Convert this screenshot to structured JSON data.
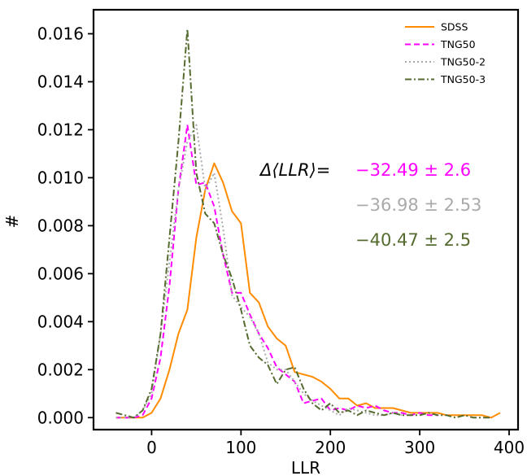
{
  "chart_data": {
    "type": "line",
    "xlabel": "LLR",
    "ylabel": "#",
    "xlim": [
      -65,
      410
    ],
    "ylim": [
      -0.0005,
      0.017
    ],
    "xticks": [
      0,
      100,
      200,
      300,
      400
    ],
    "yticks": [
      0.0,
      0.002,
      0.004,
      0.006,
      0.008,
      0.01,
      0.012,
      0.014,
      0.016
    ],
    "xtick_labels": [
      "0",
      "100",
      "200",
      "300",
      "400"
    ],
    "ytick_labels": [
      "0.000",
      "0.002",
      "0.004",
      "0.006",
      "0.008",
      "0.010",
      "0.012",
      "0.014",
      "0.016"
    ],
    "grid": false,
    "legend_position": "top-right",
    "series": [
      {
        "name": "SDSS",
        "color": "#ff8c00",
        "style": "solid",
        "x": [
          -40,
          -30,
          -20,
          -10,
          0,
          10,
          20,
          30,
          40,
          50,
          60,
          70,
          80,
          90,
          100,
          110,
          120,
          130,
          140,
          150,
          160,
          170,
          180,
          190,
          200,
          210,
          220,
          230,
          240,
          250,
          260,
          270,
          280,
          290,
          300,
          310,
          320,
          330,
          340,
          350,
          360,
          370,
          380,
          390
        ],
        "y": [
          0.0,
          0.0,
          0.0,
          0.0,
          0.0002,
          0.0008,
          0.002,
          0.0035,
          0.0045,
          0.0075,
          0.0095,
          0.0106,
          0.0098,
          0.0086,
          0.0081,
          0.0052,
          0.0048,
          0.0038,
          0.0033,
          0.003,
          0.0019,
          0.0018,
          0.0017,
          0.0015,
          0.0012,
          0.0008,
          0.0008,
          0.0005,
          0.0006,
          0.0004,
          0.0004,
          0.0004,
          0.0003,
          0.0002,
          0.0002,
          0.0002,
          0.0002,
          0.0001,
          0.0001,
          0.0001,
          0.0001,
          0.0001,
          0.0,
          0.0002
        ]
      },
      {
        "name": "TNG50",
        "color": "#ff00ff",
        "style": "dashed",
        "x": [
          -40,
          -30,
          -20,
          -10,
          0,
          10,
          20,
          30,
          40,
          50,
          60,
          70,
          80,
          90,
          100,
          110,
          120,
          130,
          140,
          150,
          160,
          170,
          180,
          190,
          200,
          210,
          220,
          230,
          240,
          250,
          260,
          270,
          280,
          290,
          300,
          310,
          320
        ],
        "y": [
          0.0,
          0.0,
          0.0,
          0.0001,
          0.0008,
          0.0025,
          0.0055,
          0.0095,
          0.0122,
          0.0097,
          0.0098,
          0.0088,
          0.0068,
          0.0052,
          0.0052,
          0.0043,
          0.0035,
          0.0029,
          0.0021,
          0.0018,
          0.0015,
          0.0006,
          0.0007,
          0.0008,
          0.0003,
          0.0004,
          0.0003,
          0.0005,
          0.0004,
          0.0005,
          0.0003,
          0.0002,
          0.0002,
          0.0001,
          0.0002,
          0.0001,
          0.0001
        ]
      },
      {
        "name": "TNG50-2",
        "color": "#aaaaaa",
        "style": "dotted",
        "x": [
          -40,
          -30,
          -20,
          -10,
          0,
          10,
          20,
          30,
          40,
          50,
          60,
          70,
          80,
          90,
          100,
          110,
          120,
          130,
          140,
          150,
          160,
          170,
          180,
          190,
          200,
          210,
          220,
          230,
          240,
          250,
          260,
          270,
          280
        ],
        "y": [
          0.0,
          0.0,
          0.0,
          0.0003,
          0.001,
          0.0035,
          0.0065,
          0.0095,
          0.0115,
          0.0122,
          0.0095,
          0.0102,
          0.0079,
          0.0051,
          0.0046,
          0.0042,
          0.0035,
          0.0023,
          0.002,
          0.002,
          0.0015,
          0.001,
          0.0007,
          0.0005,
          0.0003,
          0.0001,
          0.0004,
          0.0003,
          0.0002,
          0.0001,
          0.0001,
          0.0002,
          0.0001
        ]
      },
      {
        "name": "TNG50-3",
        "color": "#556b2f",
        "style": "dashdot",
        "x": [
          -40,
          -30,
          -20,
          -10,
          0,
          10,
          20,
          30,
          40,
          50,
          60,
          70,
          80,
          90,
          100,
          110,
          120,
          130,
          140,
          150,
          160,
          170,
          180,
          190,
          200,
          210,
          220,
          230,
          240,
          250,
          260,
          270,
          280,
          290,
          300,
          310,
          320,
          330,
          340,
          350,
          360,
          370,
          380
        ],
        "y": [
          0.0002,
          0.0001,
          0.0,
          0.0003,
          0.0012,
          0.0035,
          0.0075,
          0.0115,
          0.0162,
          0.0102,
          0.0085,
          0.0081,
          0.0068,
          0.0058,
          0.0045,
          0.003,
          0.0025,
          0.0022,
          0.0014,
          0.002,
          0.0021,
          0.0012,
          0.0006,
          0.0003,
          0.0006,
          0.0002,
          0.0003,
          0.0001,
          0.0003,
          0.0002,
          0.0001,
          0.0002,
          0.0001,
          0.0001,
          0.0001,
          0.0002,
          0.0001,
          0.0001,
          0.0,
          0.0001,
          0.0,
          0.0,
          0.0
        ]
      }
    ],
    "annotations": {
      "label": "Δ⟨LLR⟩=",
      "values": [
        {
          "text": "−32.49 ± 2.6",
          "color": "#ff00ff"
        },
        {
          "text": "−36.98 ± 2.53",
          "color": "#aaaaaa"
        },
        {
          "text": "−40.47 ± 2.5",
          "color": "#556b2f"
        }
      ]
    }
  }
}
